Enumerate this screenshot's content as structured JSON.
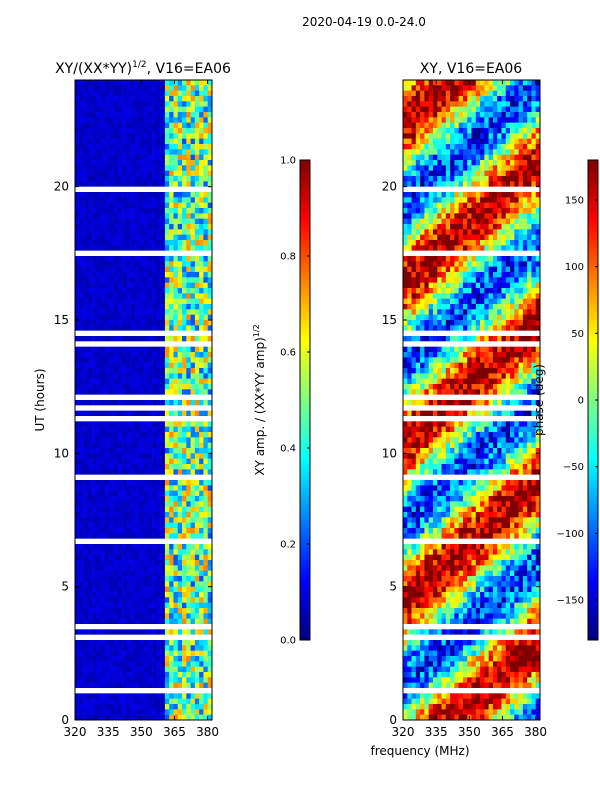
{
  "figure_title": "2020-04-19 0.0-24.0",
  "xlabel": "frequency (MHz)",
  "colors": {
    "jet": [
      "#00007f",
      "#0000ff",
      "#007fff",
      "#00ffff",
      "#7fff7f",
      "#ffff00",
      "#ff7f00",
      "#ff0000",
      "#7f0000"
    ],
    "gap": "#ffffff",
    "axis": "#000000"
  },
  "chart_data": [
    {
      "type": "heatmap",
      "title_main": "XY/(XX*YY)",
      "title_exp": "1/2",
      "title_tail": ", V16=EA06",
      "xlim": [
        320,
        382
      ],
      "ylim": [
        0,
        24
      ],
      "xticks": [
        320,
        335,
        350,
        365,
        380
      ],
      "yticks": [
        0,
        5,
        10,
        15,
        20
      ],
      "ylabel": "UT (hours)",
      "colorbar": {
        "label": "XY amp. / (XX*YY amp)",
        "label_exp": "1/2",
        "range": [
          0.0,
          1.0
        ],
        "ticks": [
          0.0,
          0.2,
          0.4,
          0.6,
          0.8,
          1.0
        ],
        "tick_labels": [
          "0.0",
          "0.2",
          "0.4",
          "0.6",
          "0.8",
          "1.0"
        ]
      },
      "description": "normalized amplitude, mostly low below ~360 MHz, higher values 360-382 MHz"
    },
    {
      "type": "heatmap",
      "title": "XY, V16=EA06",
      "xlim": [
        320,
        382
      ],
      "ylim": [
        0,
        24
      ],
      "xticks": [
        320,
        335,
        350,
        365,
        380
      ],
      "yticks": [
        0,
        5,
        10,
        15,
        20
      ],
      "colorbar": {
        "label": "phase (deg)",
        "range": [
          -180,
          180
        ],
        "ticks": [
          -150,
          -100,
          -50,
          0,
          50,
          100,
          150
        ],
        "tick_labels": [
          "−150",
          "−100",
          "−50",
          "0",
          "50",
          "100",
          "150"
        ]
      },
      "description": "XY phase across full band, mixed values"
    }
  ]
}
